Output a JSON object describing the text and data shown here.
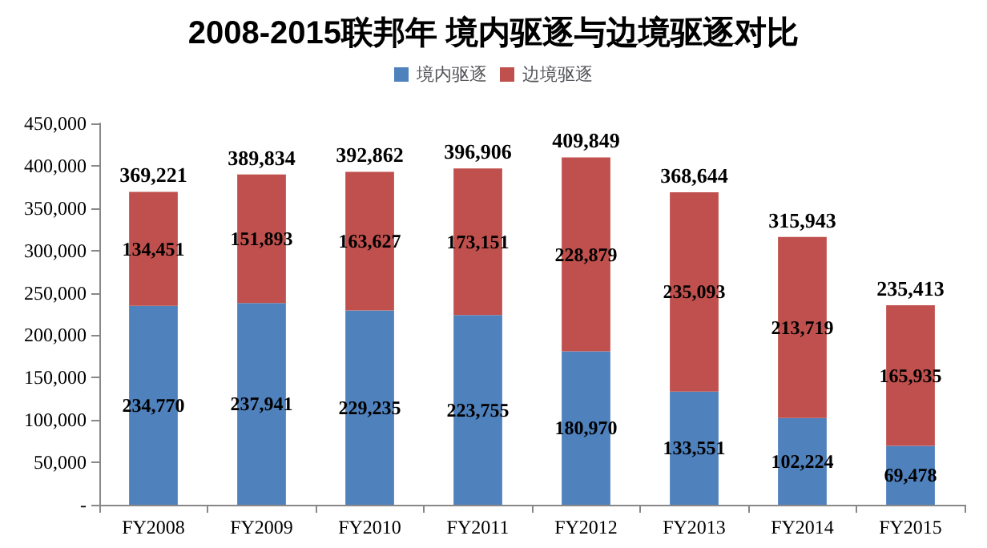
{
  "chart_data": {
    "type": "bar",
    "title": "2008-2015联邦年 境内驱逐与边境驱逐对比",
    "stacked": true,
    "legend": "top",
    "grid": false,
    "categories": [
      "FY2008",
      "FY2009",
      "FY2010",
      "FY2011",
      "FY2012",
      "FY2013",
      "FY2014",
      "FY2015"
    ],
    "series": [
      {
        "name": "境内驱逐",
        "color": "#4f81bd",
        "values": [
          234770,
          237941,
          229235,
          223755,
          180970,
          133551,
          102224,
          69478
        ],
        "value_labels": [
          "234,770",
          "237,941",
          "229,235",
          "223,755",
          "180,970",
          "133,551",
          "102,224",
          "69,478"
        ]
      },
      {
        "name": "边境驱逐",
        "color": "#c0504d",
        "values": [
          134451,
          151893,
          163627,
          173151,
          228879,
          235093,
          213719,
          165935
        ],
        "value_labels": [
          "134,451",
          "151,893",
          "163,627",
          "173,151",
          "228,879",
          "235,093",
          "213,719",
          "165,935"
        ]
      }
    ],
    "totals": [
      "369,221",
      "389,834",
      "392,862",
      "396,906",
      "409,849",
      "368,644",
      "315,943",
      "235,413"
    ],
    "ylim": [
      0,
      450000
    ],
    "yticks": [
      {
        "value": 0,
        "label": "-"
      },
      {
        "value": 50000,
        "label": "50,000"
      },
      {
        "value": 100000,
        "label": "100,000"
      },
      {
        "value": 150000,
        "label": "150,000"
      },
      {
        "value": 200000,
        "label": "200,000"
      },
      {
        "value": 250000,
        "label": "250,000"
      },
      {
        "value": 300000,
        "label": "300,000"
      },
      {
        "value": 350000,
        "label": "350,000"
      },
      {
        "value": 400000,
        "label": "400,000"
      },
      {
        "value": 450000,
        "label": "450,000"
      }
    ]
  }
}
